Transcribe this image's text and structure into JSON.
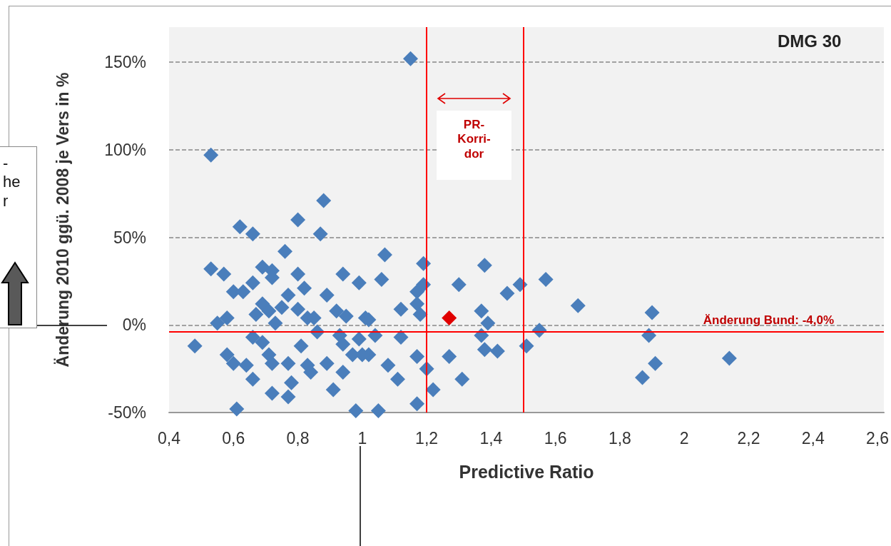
{
  "chart_data": {
    "type": "scatter",
    "xlabel": "Predictive Ratio",
    "ylabel": "Änderung 2010 ggü. 2008 je Vers in %",
    "xlim": [
      0.4,
      2.62
    ],
    "ylim": [
      -50,
      170
    ],
    "xticks": [
      {
        "value": 0.4,
        "label": "0,4"
      },
      {
        "value": 0.6,
        "label": "0,6"
      },
      {
        "value": 0.8,
        "label": "0,8"
      },
      1,
      {
        "value": 1.2,
        "label": "1,2"
      },
      {
        "value": 1.4,
        "label": "1,4"
      },
      {
        "value": 1.6,
        "label": "1,6"
      },
      {
        "value": 1.8,
        "label": "1,8"
      },
      2,
      {
        "value": 2.2,
        "label": "2,2"
      },
      {
        "value": 2.4,
        "label": "2,4"
      },
      {
        "value": 2.6,
        "label": "2,6"
      }
    ],
    "yticks": [
      {
        "value": -50,
        "label": "-50%"
      },
      {
        "value": 0,
        "label": "0%"
      },
      {
        "value": 50,
        "label": "50%"
      },
      {
        "value": 100,
        "label": "100%"
      },
      {
        "value": 150,
        "label": "150%"
      }
    ],
    "grid": "y",
    "marker": "diamond",
    "series": [
      {
        "color": "#4a7ebb",
        "x": [
          0.53,
          0.88,
          0.8,
          0.62,
          0.66,
          0.87,
          0.76,
          0.48,
          0.61,
          0.98,
          0.55,
          0.58,
          0.53,
          0.57,
          0.6,
          0.63,
          0.66,
          0.69,
          0.72,
          0.72,
          0.77,
          0.8,
          0.82,
          0.89,
          0.94,
          0.99,
          0.69,
          0.71,
          0.75,
          0.67,
          0.73,
          0.8,
          0.83,
          0.85,
          0.86,
          0.92,
          0.95,
          1.01,
          0.66,
          0.69,
          0.71,
          0.72,
          0.58,
          0.6,
          0.64,
          0.66,
          0.72,
          0.77,
          0.78,
          0.77,
          0.81,
          0.83,
          0.84,
          0.89,
          0.91,
          0.93,
          0.94,
          0.97,
          0.94,
          0.99,
          1.02,
          1.07,
          1.06,
          1.19,
          1.02,
          1.04,
          1.12,
          1.12,
          1.27,
          1.31,
          1.22,
          1.17,
          1.05,
          1.08,
          1.11,
          1.17,
          1.2,
          1.0,
          1.17,
          1.17,
          1.18,
          1.19,
          1.3,
          1.38,
          1.37,
          1.39,
          1.37,
          1.38,
          1.42,
          1.45,
          1.49,
          1.51,
          1.55,
          1.57,
          1.67,
          1.9,
          1.89,
          1.91,
          1.87,
          2.14,
          1.15
        ],
        "values": [
          97,
          71,
          60,
          56,
          52,
          52,
          42,
          -12,
          -48,
          -49,
          1,
          4,
          32,
          29,
          19,
          19,
          24,
          33,
          31,
          27,
          17,
          29,
          21,
          17,
          29,
          24,
          12,
          8,
          10,
          6,
          1,
          9,
          4,
          4,
          -4,
          8,
          5,
          4,
          -7,
          -10,
          -17,
          -22,
          -17,
          -22,
          -23,
          -31,
          -39,
          -41,
          -33,
          -22,
          -12,
          -23,
          -27,
          -22,
          -37,
          -6,
          -11,
          -17,
          -27,
          -8,
          -17,
          40,
          26,
          35,
          3,
          -6,
          -7,
          9,
          -18,
          -31,
          -37,
          -45,
          -49,
          -23,
          -31,
          -18,
          -25,
          -17,
          19,
          12,
          6,
          23,
          23,
          34,
          8,
          1,
          -6,
          -14,
          -15,
          18,
          23,
          -12,
          -3,
          26,
          11,
          7,
          -6,
          -22,
          -30,
          -19,
          152
        ]
      },
      {
        "color": "#e00000",
        "x": [
          1.27
        ],
        "values": [
          4
        ]
      }
    ],
    "ref_lines": [
      {
        "axis": "x",
        "value": 1.2,
        "color": "#ff0000"
      },
      {
        "axis": "x",
        "value": 1.5,
        "color": "#ff0000"
      },
      {
        "axis": "y",
        "value": -4,
        "label": "Änderung Bund: -4,0%",
        "color": "#ff0000"
      }
    ],
    "annotations": [
      "DMG 30",
      "PR-\nKorri-\ndor",
      "-\nhe\nr"
    ]
  }
}
